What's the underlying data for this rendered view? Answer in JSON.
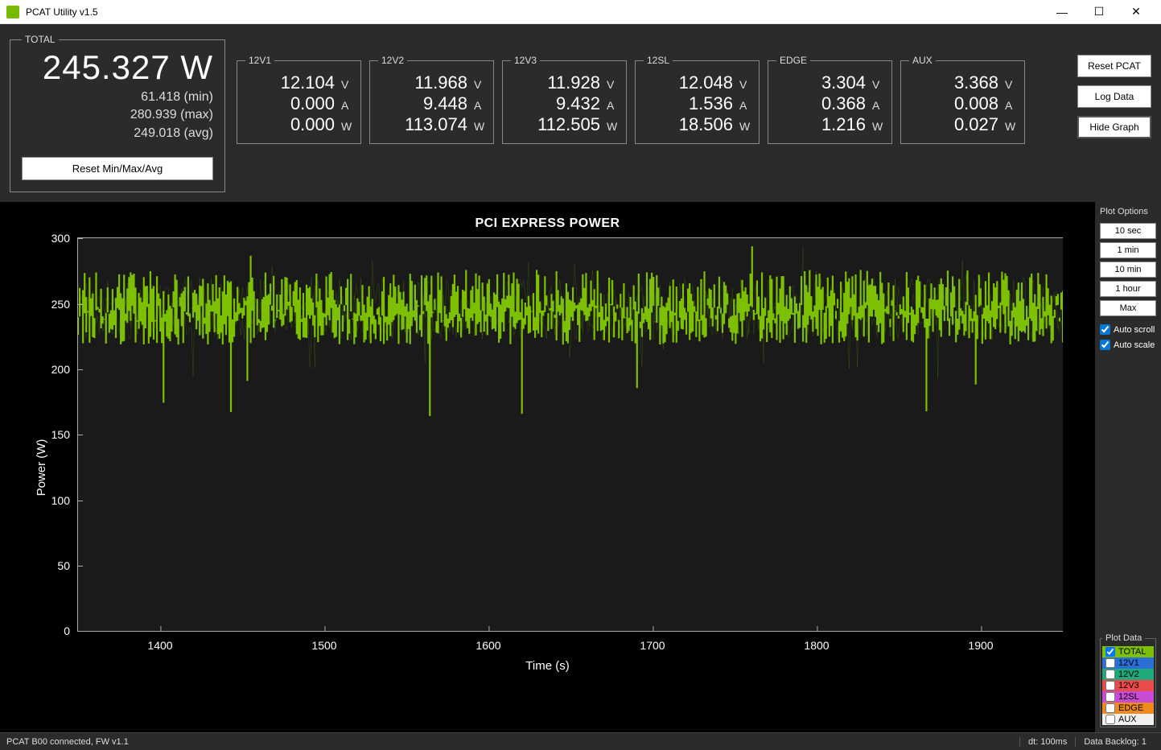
{
  "window": {
    "title": "PCAT Utility v1.5",
    "icon_color": "#76b900"
  },
  "total": {
    "legend": "TOTAL",
    "watts": "245.327 W",
    "min": "61.418 (min)",
    "max": "280.939 (max)",
    "avg": "249.018 (avg)",
    "reset_label": "Reset Min/Max/Avg"
  },
  "rails": [
    {
      "label": "12V1",
      "v": "12.104",
      "a": "0.000",
      "w": "0.000"
    },
    {
      "label": "12V2",
      "v": "11.968",
      "a": "9.448",
      "w": "113.074"
    },
    {
      "label": "12V3",
      "v": "11.928",
      "a": "9.432",
      "w": "112.505"
    },
    {
      "label": "12SL",
      "v": "12.048",
      "a": "1.536",
      "w": "18.506"
    },
    {
      "label": "EDGE",
      "v": "3.304",
      "a": "0.368",
      "w": "1.216"
    },
    {
      "label": "AUX",
      "v": "3.368",
      "a": "0.008",
      "w": "0.027"
    }
  ],
  "side_buttons": {
    "reset_pcat": "Reset PCAT",
    "log_data": "Log Data",
    "hide_graph": "Hide Graph"
  },
  "chart": {
    "title": "PCI EXPRESS POWER",
    "ylabel": "Power (W)",
    "xlabel": "Time (s)",
    "ylim": [
      0,
      300
    ],
    "yticks": [
      0,
      50,
      100,
      150,
      200,
      250,
      300
    ],
    "xlim": [
      1350,
      1950
    ],
    "xticks": [
      1400,
      1500,
      1600,
      1700,
      1800,
      1900
    ],
    "trace_color": "#7cc000",
    "background_color": "#1a1a1a",
    "axis_color": "#aaaaaa",
    "series_mean": 248,
    "series_noise": 22,
    "series_points": 600
  },
  "plot_options": {
    "title": "Plot Options",
    "buttons": [
      "10 sec",
      "1 min",
      "10 min",
      "1 hour",
      "Max"
    ],
    "auto_scroll": {
      "label": "Auto scroll",
      "checked": true
    },
    "auto_scale": {
      "label": "Auto scale",
      "checked": true
    }
  },
  "plot_data": {
    "title": "Plot Data",
    "items": [
      {
        "label": "TOTAL",
        "color": "#7cc000",
        "checked": true
      },
      {
        "label": "12V1",
        "color": "#2a6fd6",
        "checked": false
      },
      {
        "label": "12V2",
        "color": "#1fa87a",
        "checked": false
      },
      {
        "label": "12V3",
        "color": "#e94b4b",
        "checked": false
      },
      {
        "label": "12SL",
        "color": "#c84bd6",
        "checked": false
      },
      {
        "label": "EDGE",
        "color": "#f08a1f",
        "checked": false
      },
      {
        "label": "AUX",
        "color": "#f0f0f0",
        "checked": false
      }
    ]
  },
  "status": {
    "connected": "PCAT B00 connected, FW v1.1",
    "dt": "dt: 100ms",
    "backlog": "Data Backlog: 1"
  }
}
